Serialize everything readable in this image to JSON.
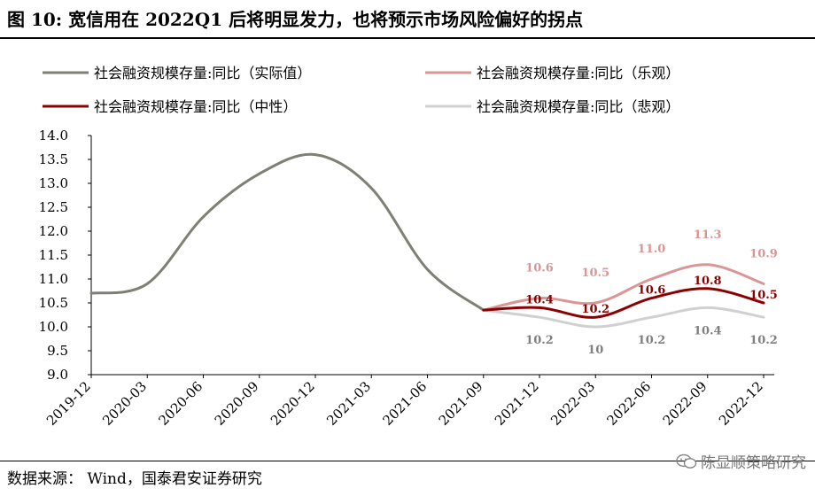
{
  "figure": {
    "title": "图 10:  宽信用在 2022Q1 后将明显发力，也将预示市场风险偏好的拐点",
    "source": "数据来源：  Wind，国泰君安证券研究",
    "watermark": "陈显顺策略研究"
  },
  "chart_data": {
    "type": "line",
    "categories": [
      "2019-12",
      "2020-03",
      "2020-06",
      "2020-09",
      "2020-12",
      "2021-03",
      "2021-06",
      "2021-09",
      "2021-12",
      "2022-03",
      "2022-06",
      "2022-09",
      "2022-12"
    ],
    "ylim": [
      9.0,
      14.0
    ],
    "yticks": [
      "9.0",
      "9.5",
      "10.0",
      "10.5",
      "11.0",
      "11.5",
      "12.0",
      "12.5",
      "13.0",
      "13.5",
      "14.0"
    ],
    "grid": false,
    "legend": "top",
    "series": [
      {
        "name": "社会融资规模存量:同比（实际值）",
        "color": "#7f7f76",
        "values": [
          10.7,
          10.9,
          12.3,
          13.2,
          13.6,
          12.9,
          11.2,
          10.35,
          null,
          null,
          null,
          null,
          null
        ],
        "labels": [
          null,
          null,
          null,
          null,
          null,
          null,
          null,
          null,
          null,
          null,
          null,
          null,
          null
        ]
      },
      {
        "name": "社会融资规模存量:同比（乐观）",
        "color": "#d99694",
        "values": [
          null,
          null,
          null,
          null,
          null,
          null,
          null,
          10.35,
          10.6,
          10.5,
          11.0,
          11.3,
          10.9
        ],
        "labels": [
          null,
          null,
          null,
          null,
          null,
          null,
          null,
          null,
          "10.6",
          "10.5",
          "11.0",
          "11.3",
          "10.9"
        ]
      },
      {
        "name": "社会融资规模存量:同比（中性）",
        "color": "#8b0000",
        "values": [
          null,
          null,
          null,
          null,
          null,
          null,
          null,
          10.35,
          10.4,
          10.2,
          10.6,
          10.8,
          10.5
        ],
        "labels": [
          null,
          null,
          null,
          null,
          null,
          null,
          null,
          null,
          "10.4",
          "10.2",
          "10.6",
          "10.8",
          "10.5"
        ]
      },
      {
        "name": "社会融资规模存量:同比（悲观）",
        "color": "#d0d0d0",
        "values": [
          null,
          null,
          null,
          null,
          null,
          null,
          null,
          10.35,
          10.2,
          10.0,
          10.2,
          10.4,
          10.2
        ],
        "labels": [
          null,
          null,
          null,
          null,
          null,
          null,
          null,
          null,
          "10.2",
          "10",
          "10.2",
          "10.4",
          "10.2"
        ]
      }
    ]
  }
}
